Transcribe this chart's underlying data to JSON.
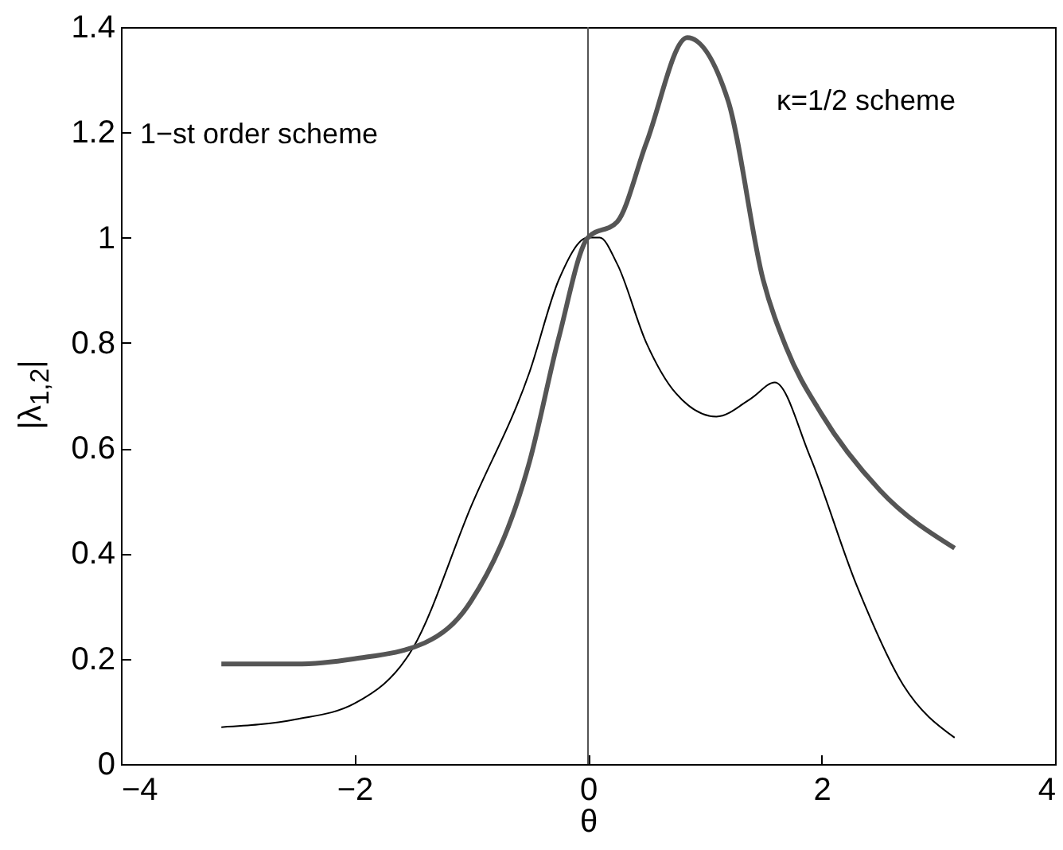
{
  "chart_data": {
    "type": "line",
    "xlabel": "θ",
    "ylabel": "|λ$_{1,2}$|",
    "annotations": [
      "1−st order scheme",
      "κ=1/2 scheme"
    ],
    "series": [
      {
        "color": "#000000",
        "x": [
          -3.14,
          -2.5,
          -2,
          -1.5,
          -1,
          -0.5,
          -0.25,
          0,
          0.1,
          0.25,
          0.5,
          0.75,
          1.1,
          1.4,
          1.6,
          1.9,
          2.3,
          2.7,
          3.14
        ],
        "values": [
          0.07,
          0.085,
          0.115,
          0.22,
          0.49,
          0.745,
          0.92,
          1.0,
          1.0,
          0.95,
          0.8,
          0.705,
          0.66,
          0.695,
          0.725,
          0.585,
          0.34,
          0.15,
          0.05
        ]
      },
      {
        "color": "#555555",
        "x": [
          -3.14,
          -2.5,
          -2,
          -1.4,
          -1,
          -0.5,
          -0.25,
          0,
          0.25,
          0.5,
          0.85,
          1.2,
          1.5,
          1.7,
          2,
          2.5,
          3.14
        ],
        "values": [
          0.19,
          0.19,
          0.2,
          0.23,
          0.31,
          0.575,
          0.81,
          1.0,
          1.03,
          1.18,
          1.38,
          1.26,
          0.92,
          0.79,
          0.665,
          0.52,
          0.41
        ]
      }
    ],
    "ref_lines": [
      {
        "axis": "x",
        "value": 0
      }
    ],
    "xlim": [
      -4,
      4
    ],
    "xticks": [
      -4,
      -2,
      0,
      2,
      4
    ],
    "ylim": [
      0,
      1.4
    ],
    "yticks": [
      0,
      0.2,
      0.4,
      0.6,
      0.8,
      1,
      1.2,
      1.4
    ],
    "grid": false,
    "marker": "none",
    "line_style": "solid"
  }
}
